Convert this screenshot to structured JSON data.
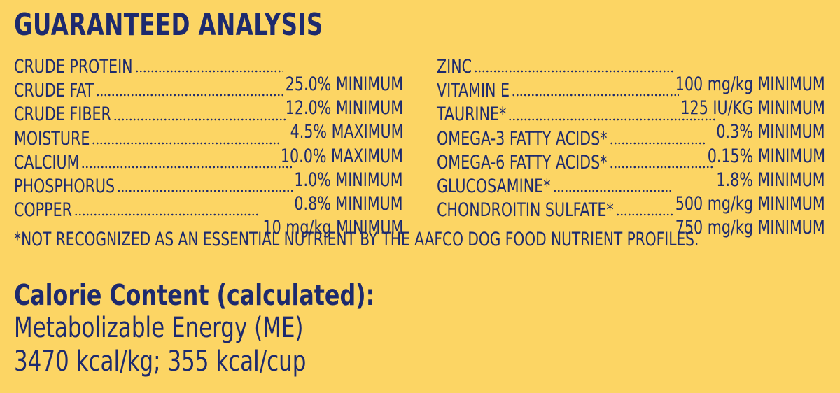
{
  "heading": "GUARANTEED ANALYSIS",
  "left_column": [
    {
      "name": "CRUDE PROTEIN",
      "value": "25.0% MINIMUM"
    },
    {
      "name": "CRUDE FAT",
      "value": "12.0% MINIMUM"
    },
    {
      "name": "CRUDE FIBER",
      "value": "4.5% MAXIMUM"
    },
    {
      "name": "MOISTURE",
      "value": "10.0% MAXIMUM"
    },
    {
      "name": "CALCIUM",
      "value": "1.0% MINIMUM"
    },
    {
      "name": "PHOSPHORUS",
      "value": "0.8% MINIMUM"
    },
    {
      "name": "COPPER",
      "value": "10 mg/kg MINIMUM"
    }
  ],
  "right_column": [
    {
      "name": "ZINC",
      "value": "100 mg/kg MINIMUM"
    },
    {
      "name": "VITAMIN E",
      "value": "125 IU/KG MINIMUM"
    },
    {
      "name": "TAURINE*",
      "value": "0.3% MINIMUM"
    },
    {
      "name": "OMEGA-3 FATTY ACIDS*",
      "value": "0.15% MINIMUM"
    },
    {
      "name": "OMEGA-6 FATTY ACIDS*",
      "value": "1.8% MINIMUM"
    },
    {
      "name": "GLUCOSAMINE*",
      "value": "500 mg/kg MINIMUM"
    },
    {
      "name": "CHONDROITIN SULFATE*",
      "value": "750 mg/kg MINIMUM"
    }
  ],
  "footnote": "*NOT RECOGNIZED AS AN ESSENTIAL NUTRIENT BY THE AAFCO DOG FOOD NUTRIENT PROFILES.",
  "calorie": {
    "title": "Calorie Content (calculated):",
    "line1": "Metabolizable Energy (ME)",
    "line2": "3470 kcal/kg; 355 kcal/cup"
  },
  "colors": {
    "background": "#fcd564",
    "text": "#1d2a6e"
  }
}
